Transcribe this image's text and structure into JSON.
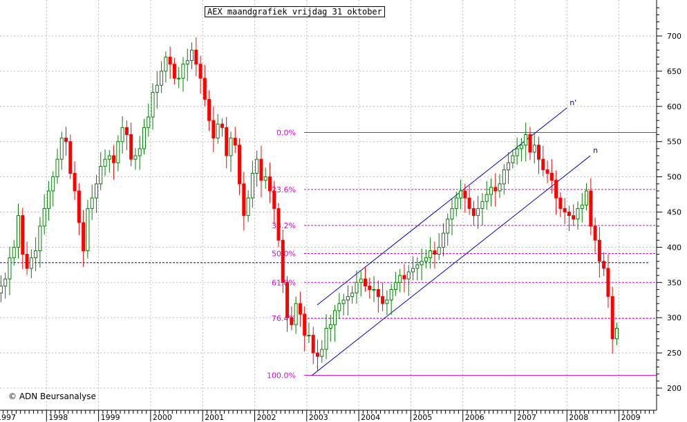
{
  "title": "AEX maandgrafiek vrijdag 31 oktober",
  "copyright": "© ADN Beursanalyse",
  "colors": {
    "up": "#008000",
    "down": "#ff0000",
    "fib": "#dd00dd",
    "channel": "#0000cc",
    "support": "#0000aa",
    "grid": "#bbbbbb",
    "axis": "#000000"
  },
  "chart_data": {
    "type": "candlestick",
    "title": "AEX maandgrafiek vrijdag 31 oktober",
    "x_tick_labels": [
      "1997",
      "1998",
      "1999",
      "2000",
      "2001",
      "2002",
      "2003",
      "2004",
      "2005",
      "2006",
      "2007",
      "2008",
      "2009"
    ],
    "y_tick_labels": [
      200,
      250,
      300,
      350,
      400,
      450,
      500,
      550,
      600,
      650,
      700
    ],
    "ylim": [
      185,
      745
    ],
    "xlim": [
      1997.0,
      2009.65
    ],
    "grid": true,
    "fibonacci": {
      "high": 563,
      "low": 218,
      "levels": [
        {
          "label": "0.0%",
          "value": 563
        },
        {
          "label": "23.6%",
          "value": 482
        },
        {
          "label": "38.2%",
          "value": 431
        },
        {
          "label": "50.0%",
          "value": 391
        },
        {
          "label": "61.8%",
          "value": 350
        },
        {
          "label": "76.4%",
          "value": 299
        },
        {
          "label": "100.0%",
          "value": 218
        }
      ]
    },
    "horizontal_line": {
      "value": 378,
      "style": "dashed"
    },
    "channel": [
      {
        "label": "n'",
        "start": [
          2003.2,
          318
        ],
        "end": [
          2008.0,
          598
        ]
      },
      {
        "label": "n",
        "start": [
          2003.1,
          218
        ],
        "end": [
          2008.45,
          530
        ]
      }
    ],
    "monthly_close": [
      335,
      345,
      355,
      385,
      400,
      445,
      390,
      370,
      385,
      395,
      430,
      455,
      480,
      500,
      525,
      555,
      550,
      505,
      480,
      435,
      395,
      455,
      470,
      490,
      515,
      525,
      530,
      520,
      550,
      570,
      560,
      525,
      530,
      540,
      570,
      585,
      620,
      630,
      650,
      670,
      660,
      640,
      640,
      660,
      665,
      680,
      660,
      640,
      610,
      580,
      555,
      575,
      570,
      530,
      555,
      545,
      490,
      445,
      470,
      505,
      525,
      495,
      500,
      480,
      455,
      410,
      350,
      300,
      290,
      320,
      305,
      275,
      275,
      250,
      245,
      255,
      285,
      290,
      310,
      320,
      325,
      330,
      335,
      350,
      355,
      345,
      340,
      340,
      330,
      320,
      325,
      340,
      350,
      360,
      355,
      365,
      370,
      375,
      380,
      385,
      395,
      390,
      400,
      420,
      440,
      455,
      470,
      480,
      470,
      455,
      445,
      455,
      465,
      475,
      485,
      480,
      490,
      510,
      520,
      530,
      540,
      545,
      560,
      535,
      545,
      525,
      510,
      505,
      495,
      470,
      455,
      450,
      445,
      440,
      455,
      460,
      480,
      430,
      410,
      380,
      370,
      330,
      270,
      285
    ],
    "start_month": "1997-01",
    "series": [
      {
        "name": "",
        "values_ref": "monthly_close"
      }
    ]
  }
}
